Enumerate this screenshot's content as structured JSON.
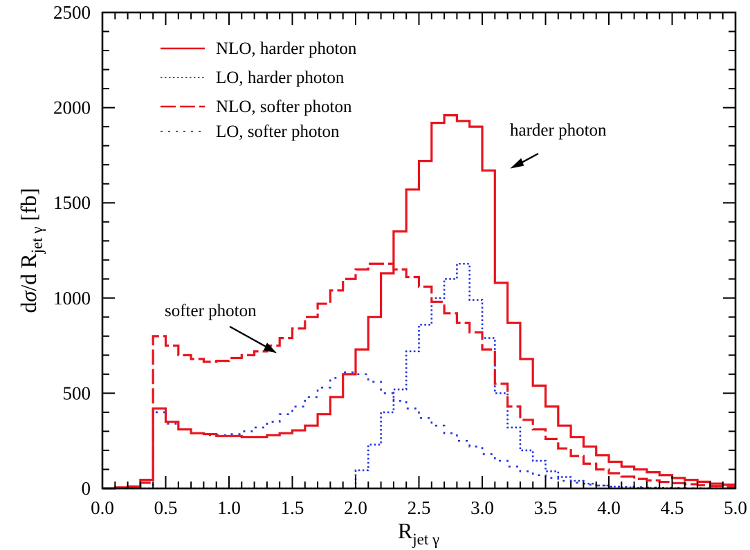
{
  "chart_data": {
    "type": "line",
    "title": "",
    "xlabel": "R_jet γ",
    "ylabel": "dσ/d R_jet γ [fb]",
    "xlim": [
      0.0,
      5.0
    ],
    "ylim": [
      0,
      2500
    ],
    "grid": false,
    "legend_position": "top-left",
    "x_ticks": [
      "0.0",
      "0.5",
      "1.0",
      "1.5",
      "2.0",
      "2.5",
      "3.0",
      "3.5",
      "4.0",
      "4.5",
      "5.0"
    ],
    "y_ticks": [
      "0",
      "500",
      "1000",
      "1500",
      "2000",
      "2500"
    ],
    "bin_width": 0.1,
    "bin_edges_start": 0.0,
    "series": [
      {
        "name": "NLO, harder photon",
        "style": "solid",
        "color": "#e8141e",
        "values": [
          0,
          5,
          10,
          45,
          420,
          350,
          310,
          290,
          285,
          275,
          275,
          270,
          270,
          280,
          290,
          305,
          330,
          390,
          480,
          600,
          730,
          900,
          1130,
          1350,
          1570,
          1720,
          1920,
          1960,
          1930,
          1900,
          1670,
          1080,
          870,
          680,
          540,
          430,
          330,
          270,
          220,
          175,
          140,
          115,
          100,
          85,
          70,
          55,
          45,
          35,
          25,
          20
        ]
      },
      {
        "name": "LO, harder photon",
        "style": "dotted-fine",
        "color": "#2233dd",
        "values": [
          0,
          0,
          0,
          0,
          0,
          0,
          0,
          0,
          0,
          0,
          0,
          0,
          0,
          0,
          0,
          0,
          0,
          0,
          0,
          0,
          95,
          230,
          400,
          520,
          720,
          860,
          1000,
          1100,
          1180,
          990,
          790,
          500,
          320,
          200,
          145,
          90,
          60,
          40,
          25,
          15,
          10,
          5,
          3,
          2,
          1,
          1,
          0,
          0,
          0,
          0
        ]
      },
      {
        "name": "NLO, softer photon",
        "style": "dashed",
        "color": "#e8141e",
        "values": [
          0,
          5,
          10,
          30,
          800,
          750,
          700,
          680,
          665,
          670,
          685,
          700,
          720,
          750,
          790,
          840,
          900,
          970,
          1040,
          1100,
          1150,
          1180,
          1180,
          1150,
          1110,
          1060,
          980,
          920,
          870,
          820,
          730,
          550,
          430,
          360,
          310,
          260,
          210,
          170,
          130,
          100,
          80,
          62,
          50,
          42,
          34,
          28,
          22,
          17,
          12,
          8
        ]
      },
      {
        "name": "LO, softer photon",
        "style": "dotted-wide",
        "color": "#2233dd",
        "values": [
          0,
          0,
          0,
          0,
          400,
          340,
          310,
          290,
          280,
          280,
          285,
          300,
          320,
          350,
          390,
          430,
          480,
          530,
          580,
          610,
          600,
          560,
          500,
          460,
          420,
          370,
          330,
          290,
          250,
          220,
          180,
          145,
          115,
          90,
          70,
          55,
          40,
          30,
          20,
          15,
          10,
          8,
          6,
          4,
          3,
          2,
          1,
          1,
          0,
          0
        ]
      }
    ],
    "annotations": [
      {
        "text": "harder photon",
        "points_to": [
          3.22,
          1680
        ]
      },
      {
        "text": "softer photon",
        "points_to": [
          1.35,
          740
        ]
      }
    ]
  },
  "legend": {
    "entries": [
      "NLO, harder photon",
      "LO, harder photon",
      "NLO, softer photon",
      "LO, softer photon"
    ]
  }
}
